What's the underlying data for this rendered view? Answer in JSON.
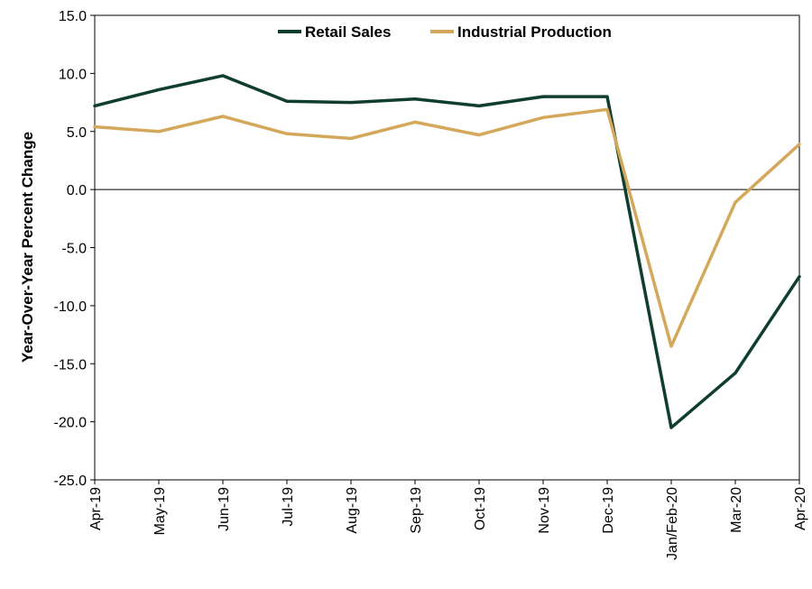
{
  "chart_data": {
    "type": "line",
    "title": "",
    "xlabel": "",
    "ylabel": "Year-Over-Year Percent Change",
    "ylim": [
      -25,
      15
    ],
    "yticks": [
      "15.0",
      "10.0",
      "5.0",
      "0.0",
      "-5.0",
      "-10.0",
      "-15.0",
      "-20.0",
      "-25.0"
    ],
    "categories": [
      "Apr-19",
      "May-19",
      "Jun-19",
      "Jul-19",
      "Aug-19",
      "Sep-19",
      "Oct-19",
      "Nov-19",
      "Dec-19",
      "Jan/Feb-20",
      "Mar-20",
      "Apr-20"
    ],
    "legend": "top-center",
    "grid": false,
    "series": [
      {
        "name": "Retail Sales",
        "color": "#0f3d2e",
        "values": [
          7.2,
          8.6,
          9.8,
          7.6,
          7.5,
          7.8,
          7.2,
          8.0,
          8.0,
          -20.5,
          -15.8,
          -7.5
        ]
      },
      {
        "name": "Industrial Production",
        "color": "#d4a85a",
        "values": [
          5.4,
          5.0,
          6.3,
          4.8,
          4.4,
          5.8,
          4.7,
          6.2,
          6.9,
          -13.5,
          -1.1,
          3.9
        ]
      }
    ]
  }
}
